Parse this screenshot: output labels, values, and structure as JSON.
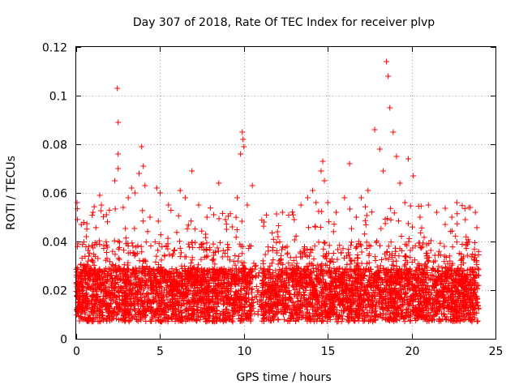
{
  "chart_data": {
    "type": "scatter",
    "title": "Day 307 of 2018, Rate Of TEC Index for receiver plvp",
    "xlabel": "GPS time / hours",
    "ylabel": "ROTI / TECUs",
    "xlim": [
      0,
      25
    ],
    "ylim": [
      0,
      0.12
    ],
    "xticks": [
      0,
      5,
      10,
      15,
      20,
      25
    ],
    "xtick_labels": [
      "0",
      "5",
      "10",
      "15",
      "20",
      "25"
    ],
    "yticks": [
      0,
      0.02,
      0.04,
      0.06,
      0.08,
      0.1,
      0.12
    ],
    "ytick_labels": [
      "0",
      "0.02",
      "0.04",
      "0.06",
      "0.08",
      "0.1",
      "0.12"
    ],
    "grid": true,
    "marker": "+",
    "series_color": "#ff0000",
    "data_range_x": [
      0,
      24
    ],
    "gap_x": [
      10.5,
      11.0
    ],
    "points": [
      [
        0.05,
        0.056
      ],
      [
        0.3,
        0.047
      ],
      [
        0.6,
        0.042
      ],
      [
        1.0,
        0.052
      ],
      [
        1.4,
        0.059
      ],
      [
        1.8,
        0.051
      ],
      [
        2.3,
        0.065
      ],
      [
        2.45,
        0.103
      ],
      [
        2.5,
        0.089
      ],
      [
        2.5,
        0.076
      ],
      [
        2.5,
        0.07
      ],
      [
        2.8,
        0.054
      ],
      [
        3.1,
        0.058
      ],
      [
        3.3,
        0.062
      ],
      [
        3.5,
        0.06
      ],
      [
        3.75,
        0.068
      ],
      [
        3.9,
        0.079
      ],
      [
        4.0,
        0.071
      ],
      [
        4.1,
        0.063
      ],
      [
        4.4,
        0.05
      ],
      [
        4.8,
        0.062
      ],
      [
        5.0,
        0.06
      ],
      [
        5.5,
        0.055
      ],
      [
        6.2,
        0.061
      ],
      [
        6.5,
        0.058
      ],
      [
        6.9,
        0.069
      ],
      [
        7.3,
        0.055
      ],
      [
        7.8,
        0.05
      ],
      [
        8.2,
        0.051
      ],
      [
        8.5,
        0.064
      ],
      [
        8.9,
        0.049
      ],
      [
        9.3,
        0.046
      ],
      [
        9.6,
        0.058
      ],
      [
        9.8,
        0.076
      ],
      [
        9.9,
        0.085
      ],
      [
        9.95,
        0.082
      ],
      [
        10.0,
        0.079
      ],
      [
        10.2,
        0.055
      ],
      [
        10.5,
        0.063
      ],
      [
        11.2,
        0.048
      ],
      [
        12.0,
        0.044
      ],
      [
        12.3,
        0.052
      ],
      [
        13.0,
        0.049
      ],
      [
        13.4,
        0.055
      ],
      [
        13.8,
        0.058
      ],
      [
        14.1,
        0.061
      ],
      [
        14.3,
        0.056
      ],
      [
        14.6,
        0.069
      ],
      [
        14.7,
        0.073
      ],
      [
        14.8,
        0.065
      ],
      [
        15.0,
        0.056
      ],
      [
        15.5,
        0.052
      ],
      [
        16.0,
        0.058
      ],
      [
        16.3,
        0.072
      ],
      [
        16.7,
        0.05
      ],
      [
        17.0,
        0.058
      ],
      [
        17.4,
        0.061
      ],
      [
        17.8,
        0.086
      ],
      [
        18.1,
        0.078
      ],
      [
        18.3,
        0.069
      ],
      [
        18.5,
        0.114
      ],
      [
        18.6,
        0.108
      ],
      [
        18.7,
        0.095
      ],
      [
        18.9,
        0.085
      ],
      [
        19.1,
        0.075
      ],
      [
        19.3,
        0.064
      ],
      [
        19.6,
        0.056
      ],
      [
        19.8,
        0.074
      ],
      [
        20.1,
        0.067
      ],
      [
        20.5,
        0.05
      ],
      [
        21.0,
        0.055
      ],
      [
        21.5,
        0.052
      ],
      [
        22.0,
        0.047
      ],
      [
        22.4,
        0.05
      ],
      [
        22.7,
        0.056
      ],
      [
        23.2,
        0.049
      ],
      [
        23.5,
        0.054
      ],
      [
        23.8,
        0.052
      ]
    ]
  }
}
